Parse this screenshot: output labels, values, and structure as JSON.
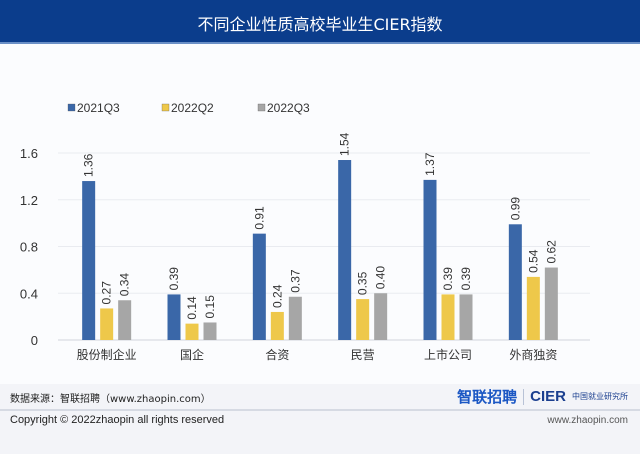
{
  "header": {
    "title": "不同企业性质高校毕业生CIER指数"
  },
  "footer": {
    "source": "数据来源：智联招聘（www.zhaopin.com）",
    "logo_zhaopin": "智联招聘",
    "logo_cier": "CIER",
    "logo_cier_cn": "中国就业研究所",
    "copyright": "Copyright ©  2022zhaopin all rights reserved",
    "url": "www.zhaopin.com"
  },
  "chart_data": {
    "type": "bar",
    "title": "不同企业性质高校毕业生CIER指数",
    "xlabel": "",
    "ylabel": "",
    "ylim": [
      0,
      1.6
    ],
    "yticks": [
      0,
      0.4,
      0.8,
      1.2,
      1.6
    ],
    "ytick_labels": [
      "0",
      "0.4",
      "0.8",
      "1.2",
      "1.6"
    ],
    "grid": true,
    "legend_position": "top-left",
    "categories": [
      "股份制企业",
      "国企",
      "合资",
      "民营",
      "上市公司",
      "外商独资"
    ],
    "series": [
      {
        "name": "2021Q3",
        "color": "#3a67a8",
        "values": [
          1.36,
          0.39,
          0.91,
          1.54,
          1.37,
          0.99
        ]
      },
      {
        "name": "2022Q2",
        "color": "#eec84a",
        "values": [
          0.27,
          0.14,
          0.24,
          0.35,
          0.39,
          0.54
        ]
      },
      {
        "name": "2022Q3",
        "color": "#a6a6a6",
        "values": [
          0.34,
          0.15,
          0.37,
          0.4,
          0.39,
          0.62
        ]
      }
    ]
  }
}
